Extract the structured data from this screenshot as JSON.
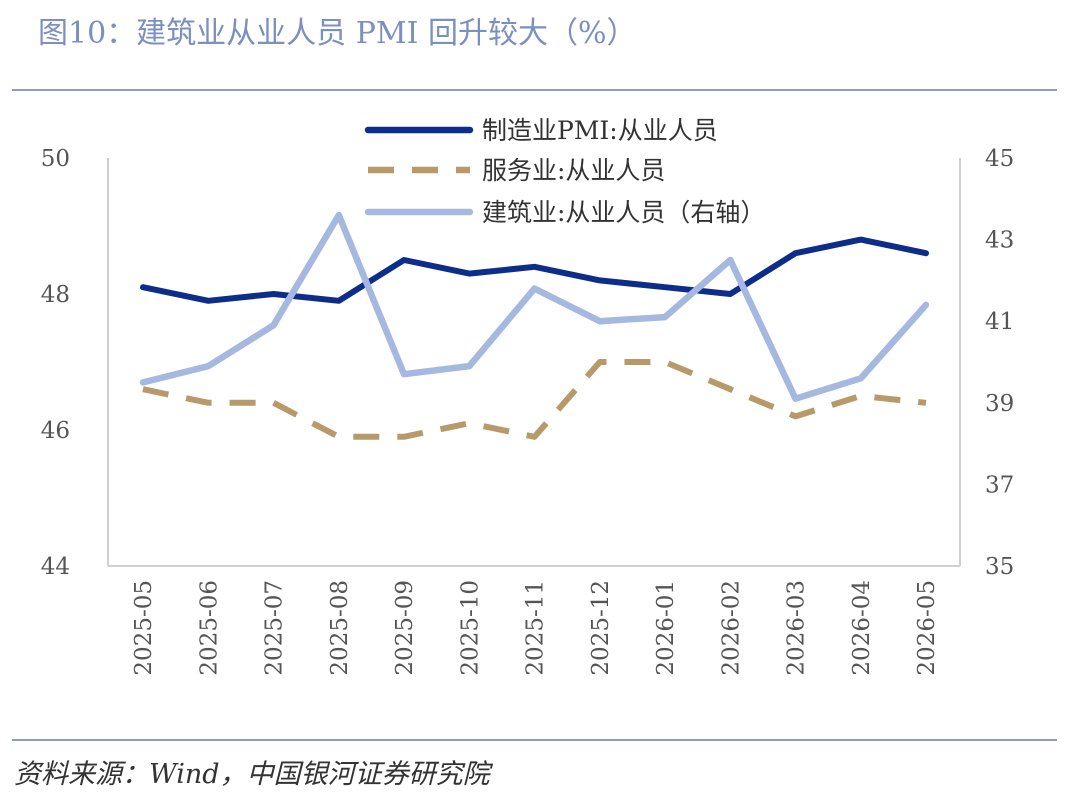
{
  "title": "图10：建筑业从业人员 PMI 回升较大（%）",
  "source": "资料来源：Wind，中国银河证券研究院",
  "chart_data": {
    "type": "line",
    "categories": [
      "2025-05",
      "2025-06",
      "2025-07",
      "2025-08",
      "2025-09",
      "2025-10",
      "2025-11",
      "2025-12",
      "2026-01",
      "2026-02",
      "2026-03",
      "2026-04",
      "2026-05"
    ],
    "y_left": {
      "min": 44,
      "max": 50,
      "ticks": [
        "44",
        "46",
        "48",
        "50"
      ]
    },
    "y_right": {
      "min": 35,
      "max": 45,
      "ticks": [
        "35",
        "37",
        "39",
        "41",
        "43",
        "45"
      ]
    },
    "grid": false,
    "legend_position": "top-center",
    "series": [
      {
        "name": "制造业PMI:从业人员",
        "axis": "left",
        "color": "#0d2d8a",
        "dash": "solid",
        "values": [
          48.1,
          47.9,
          48.0,
          47.9,
          48.5,
          48.3,
          48.4,
          48.2,
          48.1,
          48.0,
          48.6,
          48.8,
          48.6
        ]
      },
      {
        "name": "服务业:从业人员",
        "axis": "left",
        "color": "#b89a6a",
        "dash": "dashed",
        "values": [
          46.6,
          46.4,
          46.4,
          45.9,
          45.9,
          46.1,
          45.9,
          47.0,
          47.0,
          46.6,
          46.2,
          46.5,
          46.4
        ]
      },
      {
        "name": "建筑业:从业人员（右轴）",
        "axis": "right",
        "color": "#a4b8e0",
        "dash": "solid",
        "values": [
          39.5,
          39.9,
          40.9,
          43.6,
          39.7,
          39.9,
          41.8,
          41.0,
          41.1,
          42.5,
          39.1,
          39.6,
          41.4
        ]
      }
    ]
  }
}
